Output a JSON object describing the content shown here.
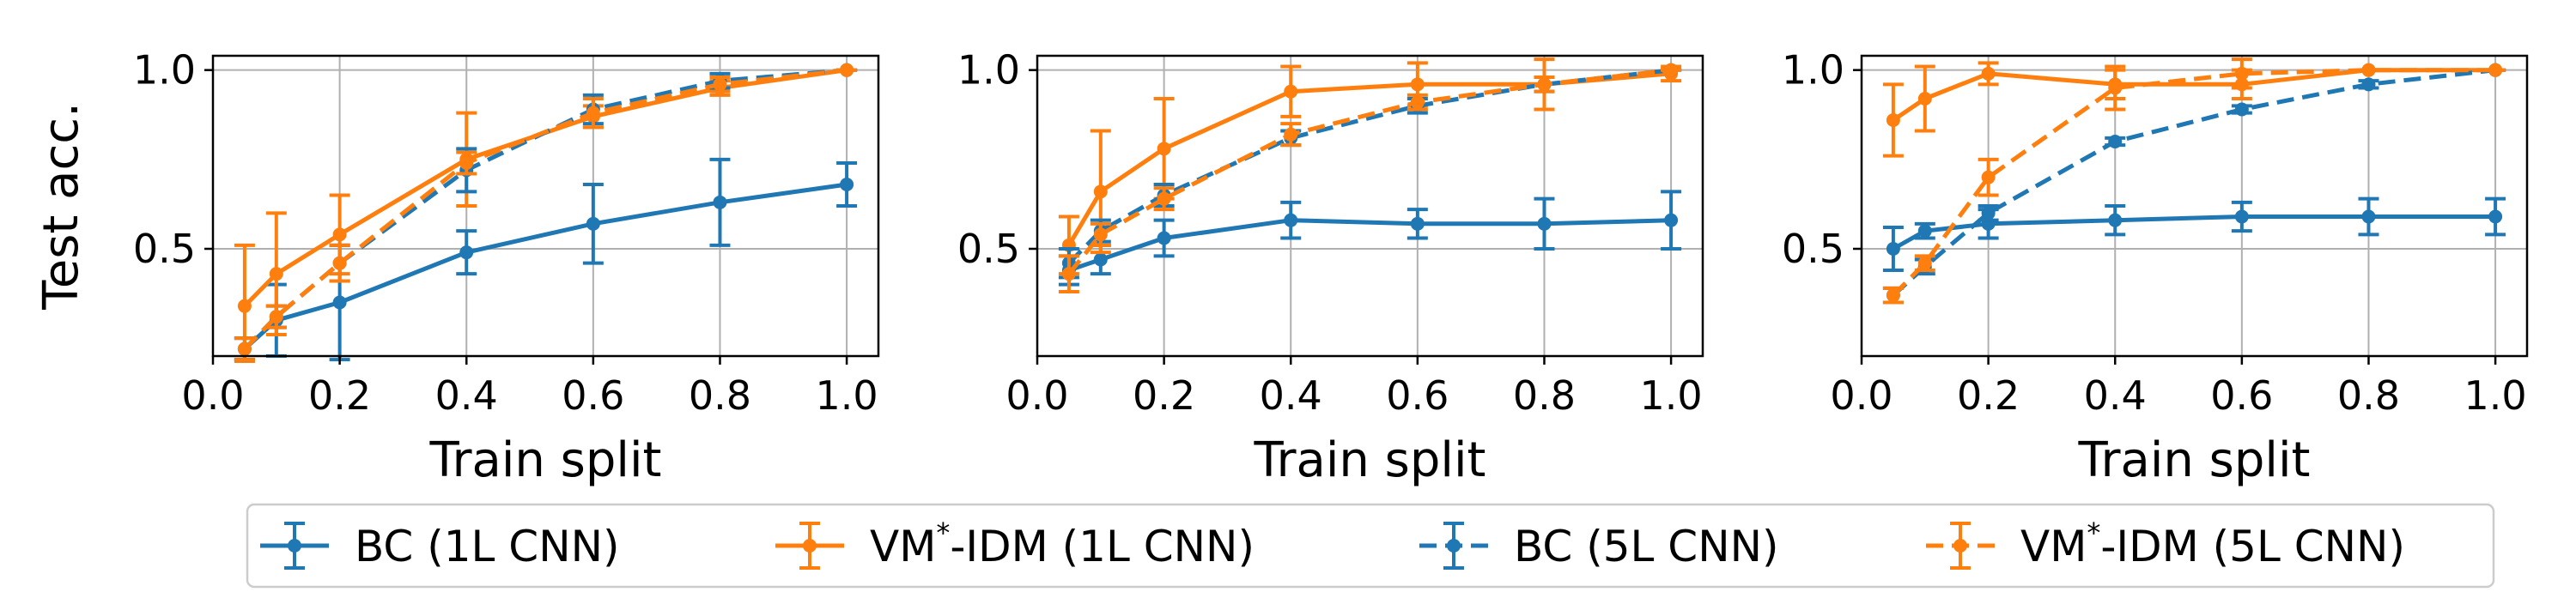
{
  "legend": {
    "entries": [
      {
        "series": 0,
        "label_main": "BC (1L CNN)",
        "sup": ""
      },
      {
        "series": 1,
        "label_main": "VM",
        "sup": "*",
        "label_tail": "-IDM (1L CNN)"
      },
      {
        "series": 2,
        "label_main": "BC (5L CNN)",
        "sup": ""
      },
      {
        "series": 3,
        "label_main": "VM",
        "sup": "*",
        "label_tail": "-IDM (5L CNN)"
      }
    ]
  },
  "chart_data": [
    {
      "type": "line",
      "xlabel": "Train split",
      "ylabel": "Test acc.",
      "xlim": [
        0.0,
        1.05
      ],
      "ylim": [
        0.2,
        1.04
      ],
      "xticks": [
        "0.0",
        "0.2",
        "0.4",
        "0.6",
        "0.8",
        "1.0"
      ],
      "yticks": [
        "0.5",
        "1.0"
      ],
      "x": [
        0.05,
        0.1,
        0.2,
        0.4,
        0.6,
        0.8,
        1.0
      ],
      "series": [
        {
          "name": "BC (1L CNN)",
          "color": "#1f77b4",
          "dash": "solid",
          "values": [
            0.22,
            0.3,
            0.35,
            0.49,
            0.57,
            0.63,
            0.68
          ],
          "errors": [
            0.03,
            0.1,
            0.16,
            0.06,
            0.11,
            0.12,
            0.06
          ]
        },
        {
          "name": "VM*-IDM (1L CNN)",
          "color": "#ff7f0e",
          "dash": "solid",
          "values": [
            0.34,
            0.43,
            0.54,
            0.75,
            0.87,
            0.95,
            1.0
          ],
          "errors": [
            0.17,
            0.17,
            0.11,
            0.13,
            0.03,
            0.02,
            0.0
          ]
        },
        {
          "name": "BC (5L CNN)",
          "color": "#1f77b4",
          "dash": "dashed",
          "values": [
            0.22,
            0.31,
            0.46,
            0.72,
            0.89,
            0.97,
            1.0
          ],
          "errors": [
            0.03,
            0.03,
            0.05,
            0.06,
            0.04,
            0.02,
            0.0
          ]
        },
        {
          "name": "VM*-IDM (5L CNN)",
          "color": "#ff7f0e",
          "dash": "dashed",
          "values": [
            0.22,
            0.31,
            0.46,
            0.74,
            0.88,
            0.96,
            1.0
          ],
          "errors": [
            0.03,
            0.03,
            0.05,
            0.03,
            0.04,
            0.02,
            0.0
          ]
        }
      ]
    },
    {
      "type": "line",
      "xlabel": "Train split",
      "ylabel": "",
      "xlim": [
        0.0,
        1.05
      ],
      "ylim": [
        0.2,
        1.04
      ],
      "xticks": [
        "0.0",
        "0.2",
        "0.4",
        "0.6",
        "0.8",
        "1.0"
      ],
      "yticks": [
        "0.5",
        "1.0"
      ],
      "x": [
        0.05,
        0.1,
        0.2,
        0.4,
        0.6,
        0.8,
        1.0
      ],
      "series": [
        {
          "name": "BC (1L CNN)",
          "color": "#1f77b4",
          "dash": "solid",
          "values": [
            0.44,
            0.47,
            0.53,
            0.58,
            0.57,
            0.57,
            0.58
          ],
          "errors": [
            0.04,
            0.04,
            0.05,
            0.05,
            0.04,
            0.07,
            0.08
          ]
        },
        {
          "name": "VM*-IDM (1L CNN)",
          "color": "#ff7f0e",
          "dash": "solid",
          "values": [
            0.51,
            0.66,
            0.78,
            0.94,
            0.96,
            0.96,
            0.99
          ],
          "errors": [
            0.08,
            0.17,
            0.14,
            0.07,
            0.06,
            0.07,
            0.02
          ]
        },
        {
          "name": "BC (5L CNN)",
          "color": "#1f77b4",
          "dash": "dashed",
          "values": [
            0.46,
            0.55,
            0.65,
            0.81,
            0.9,
            0.96,
            1.0
          ],
          "errors": [
            0.04,
            0.03,
            0.03,
            0.02,
            0.02,
            0.02,
            0.0
          ]
        },
        {
          "name": "VM*-IDM (5L CNN)",
          "color": "#ff7f0e",
          "dash": "dashed",
          "values": [
            0.43,
            0.54,
            0.64,
            0.82,
            0.91,
            0.96,
            1.0
          ],
          "errors": [
            0.05,
            0.03,
            0.03,
            0.03,
            0.02,
            0.02,
            0.0
          ]
        }
      ]
    },
    {
      "type": "line",
      "xlabel": "Train split",
      "ylabel": "",
      "xlim": [
        0.0,
        1.05
      ],
      "ylim": [
        0.2,
        1.04
      ],
      "xticks": [
        "0.0",
        "0.2",
        "0.4",
        "0.6",
        "0.8",
        "1.0"
      ],
      "yticks": [
        "0.5",
        "1.0"
      ],
      "x": [
        0.05,
        0.1,
        0.2,
        0.4,
        0.6,
        0.8,
        1.0
      ],
      "series": [
        {
          "name": "BC (1L CNN)",
          "color": "#1f77b4",
          "dash": "solid",
          "values": [
            0.5,
            0.55,
            0.57,
            0.58,
            0.59,
            0.59,
            0.59
          ],
          "errors": [
            0.06,
            0.02,
            0.04,
            0.04,
            0.04,
            0.05,
            0.05
          ]
        },
        {
          "name": "VM*-IDM (1L CNN)",
          "color": "#ff7f0e",
          "dash": "solid",
          "values": [
            0.86,
            0.92,
            0.99,
            0.96,
            0.96,
            1.0,
            1.0
          ],
          "errors": [
            0.1,
            0.09,
            0.03,
            0.04,
            0.04,
            0.0,
            0.0
          ]
        },
        {
          "name": "BC (5L CNN)",
          "color": "#1f77b4",
          "dash": "dashed",
          "values": [
            0.37,
            0.45,
            0.6,
            0.8,
            0.89,
            0.96,
            1.0
          ],
          "errors": [
            0.02,
            0.02,
            0.02,
            0.01,
            0.01,
            0.01,
            0.0
          ]
        },
        {
          "name": "VM*-IDM (5L CNN)",
          "color": "#ff7f0e",
          "dash": "dashed",
          "values": [
            0.37,
            0.46,
            0.7,
            0.95,
            0.99,
            1.0,
            1.0
          ],
          "errors": [
            0.02,
            0.02,
            0.05,
            0.06,
            0.04,
            0.0,
            0.0
          ]
        }
      ]
    }
  ]
}
